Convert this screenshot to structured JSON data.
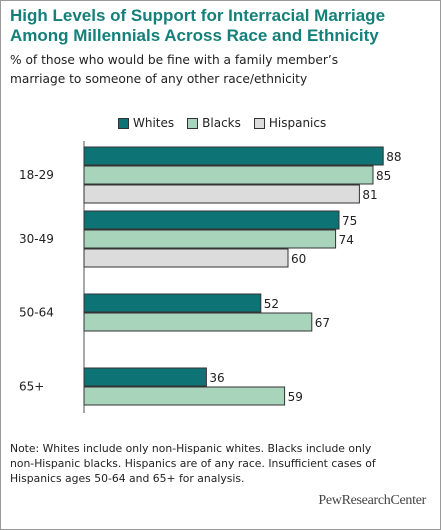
{
  "title_line1": "High Levels of Support for Interracial Marriage",
  "title_line2": "Among Millennials Across Race and Ethnicity",
  "subtitle_line1": "% of those who would be fine with a family member’s",
  "subtitle_line2": "marriage to someone of any other race/ethnicity",
  "note_line1": "Note: Whites include only non-Hispanic whites. Blacks include only",
  "note_line2": "non-Hispanic blacks. Hispanics are of any race. Insufficient cases of",
  "note_line3": "Hispanics ages 50-64 and 65+ for analysis.",
  "logo": "PewResearchCenter",
  "chart_data": {
    "type": "bar",
    "orientation": "horizontal",
    "categories": [
      "18-29",
      "30-49",
      "50-64",
      "65+"
    ],
    "series": [
      {
        "name": "Whites",
        "color": "#0d7374",
        "values": [
          88,
          75,
          52,
          36
        ]
      },
      {
        "name": "Blacks",
        "color": "#a8d4bc",
        "values": [
          85,
          74,
          67,
          59
        ]
      },
      {
        "name": "Hispanics",
        "color": "#dcdcdc",
        "values": [
          81,
          60,
          null,
          null
        ]
      }
    ],
    "xlim": [
      0,
      100
    ],
    "grid": false,
    "legend": "top"
  }
}
